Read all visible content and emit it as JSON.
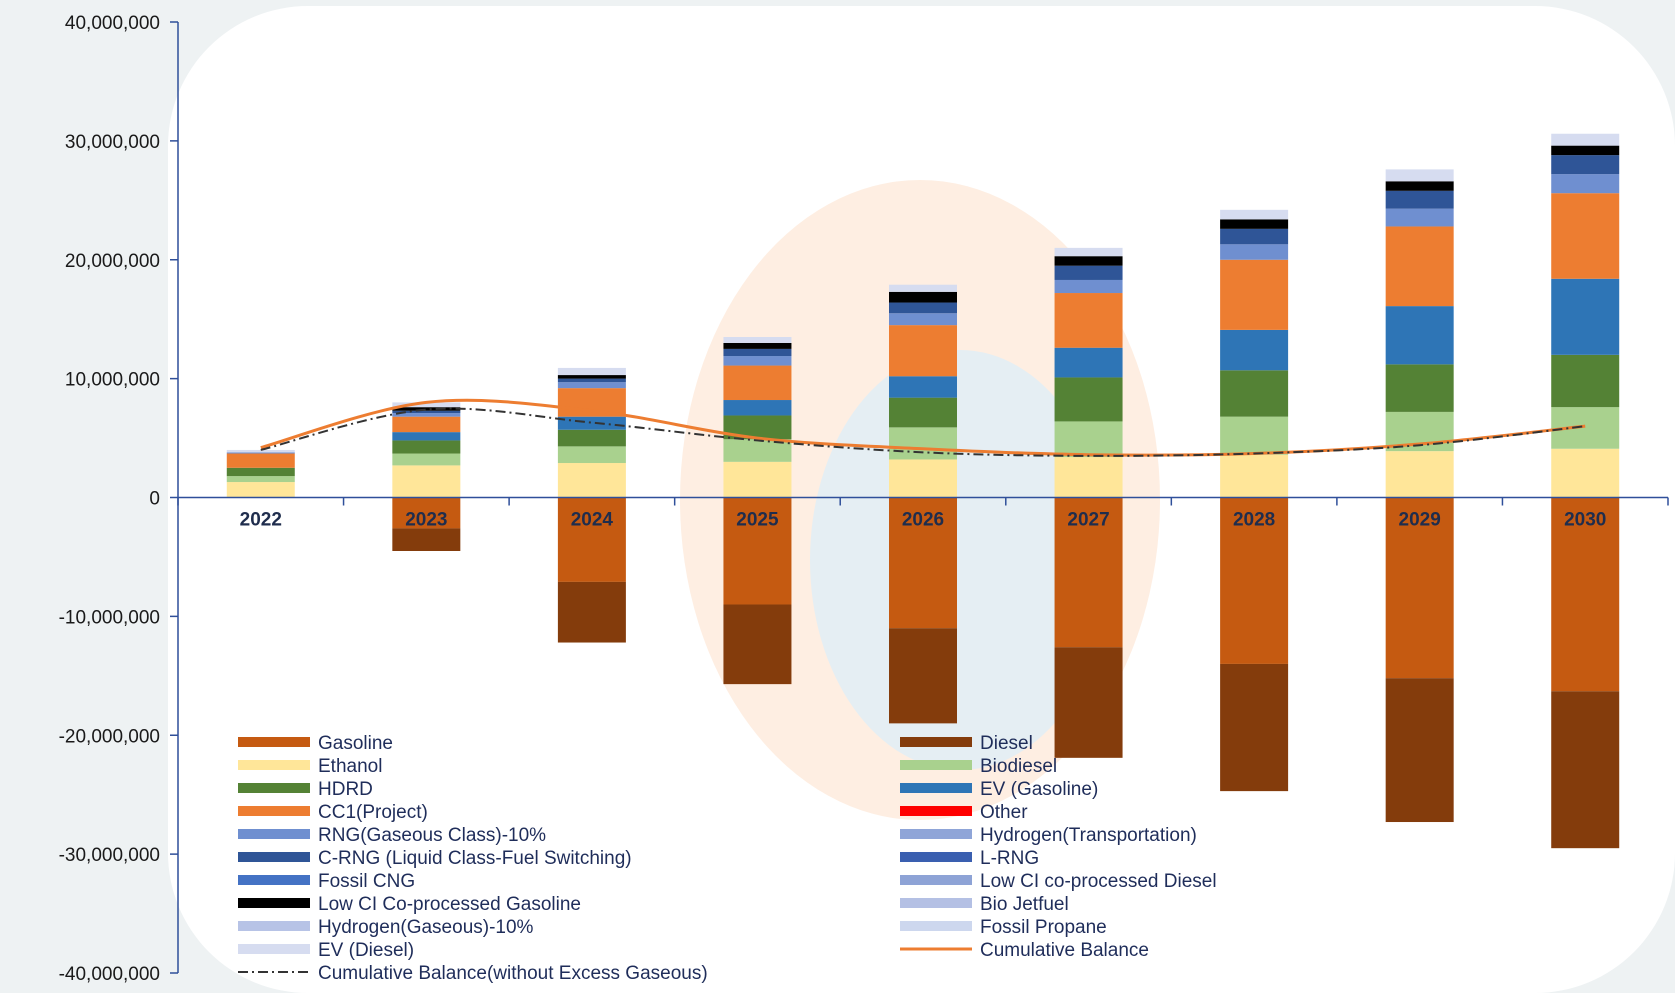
{
  "colors": {
    "axis": "#2f4f9a",
    "panel": "#ffffff",
    "page": "#eef2f3",
    "watermark_orange": "#fde7d6",
    "watermark_blue": "#dfeef8"
  },
  "chart_data": {
    "type": "bar",
    "stacked": true,
    "title": "",
    "xlabel": "",
    "ylabel": "",
    "ylim": [
      -40000000,
      40000000
    ],
    "yticks": [
      40000000,
      30000000,
      20000000,
      10000000,
      0,
      -10000000,
      -20000000,
      -30000000,
      -40000000
    ],
    "ytick_labels": [
      "40,000,000",
      "30,000,000",
      "20,000,000",
      "10,000,000",
      "0",
      "-10,000,000",
      "-20,000,000",
      "-30,000,000",
      "-40,000,000"
    ],
    "categories": [
      "2022",
      "2023",
      "2024",
      "2025",
      "2026",
      "2027",
      "2028",
      "2029",
      "2030"
    ],
    "legend_position": "bottom",
    "series": [
      {
        "name": "Gasoline",
        "color": "#c55a11",
        "values": [
          0,
          -2600000,
          -7100000,
          -9000000,
          -11000000,
          -12600000,
          -14000000,
          -15200000,
          -16300000
        ]
      },
      {
        "name": "Diesel",
        "color": "#843c0c",
        "values": [
          0,
          -1900000,
          -5100000,
          -6700000,
          -8000000,
          -9300000,
          -10700000,
          -12100000,
          -13200000
        ]
      },
      {
        "name": "Ethanol",
        "color": "#ffe699",
        "values": [
          1300000,
          2700000,
          2900000,
          3000000,
          3200000,
          3400000,
          3600000,
          3900000,
          4100000
        ]
      },
      {
        "name": "Biodiesel",
        "color": "#a9d18e",
        "values": [
          500000,
          1000000,
          1400000,
          1900000,
          2700000,
          3000000,
          3200000,
          3300000,
          3500000
        ]
      },
      {
        "name": "HDRD",
        "color": "#548235",
        "values": [
          700000,
          1100000,
          1400000,
          2000000,
          2500000,
          3700000,
          3900000,
          4000000,
          4400000
        ]
      },
      {
        "name": "EV (Gasoline)",
        "color": "#2e75b6",
        "values": [
          0,
          700000,
          1100000,
          1300000,
          1800000,
          2500000,
          3400000,
          4900000,
          6400000
        ]
      },
      {
        "name": "CC1(Project)",
        "color": "#ed7d31",
        "values": [
          1200000,
          1300000,
          2400000,
          2900000,
          4300000,
          4600000,
          5900000,
          6700000,
          7200000
        ]
      },
      {
        "name": "Other",
        "color": "#ff0000",
        "values": [
          0,
          0,
          0,
          0,
          0,
          0,
          0,
          0,
          0
        ]
      },
      {
        "name": "RNG(Gaseous Class)-10%",
        "color": "#6f8fd0",
        "values": [
          100000,
          300000,
          500000,
          800000,
          1000000,
          1100000,
          1300000,
          1500000,
          1600000
        ]
      },
      {
        "name": "Hydrogen(Transportation)",
        "color": "#8fa5d8",
        "values": [
          0,
          0,
          0,
          0,
          0,
          0,
          0,
          0,
          0
        ]
      },
      {
        "name": "C-RNG (Liquid Class-Fuel Switching)",
        "color": "#2f5597",
        "values": [
          0,
          200000,
          300000,
          600000,
          900000,
          1200000,
          1300000,
          1500000,
          1600000
        ]
      },
      {
        "name": "L-RNG",
        "color": "#3a5fb0",
        "values": [
          0,
          0,
          0,
          0,
          0,
          0,
          0,
          0,
          0
        ]
      },
      {
        "name": "Fossil CNG",
        "color": "#4472c4",
        "values": [
          0,
          0,
          0,
          0,
          0,
          0,
          0,
          0,
          0
        ]
      },
      {
        "name": "Low CI co-processed Diesel",
        "color": "#8ea3d6",
        "values": [
          0,
          0,
          0,
          0,
          0,
          0,
          0,
          0,
          0
        ]
      },
      {
        "name": "Low CI Co-processed Gasoline",
        "color": "#000000",
        "values": [
          0,
          300000,
          300000,
          500000,
          900000,
          800000,
          800000,
          800000,
          800000
        ]
      },
      {
        "name": "Bio Jetfuel",
        "color": "#b4c0e4",
        "values": [
          0,
          0,
          0,
          0,
          0,
          0,
          0,
          0,
          0
        ]
      },
      {
        "name": "Hydrogen(Gaseous)-10%",
        "color": "#b7c3e6",
        "values": [
          0,
          0,
          0,
          0,
          0,
          0,
          0,
          0,
          0
        ]
      },
      {
        "name": "Fossil Propane",
        "color": "#cdd7ee",
        "values": [
          0,
          0,
          0,
          0,
          0,
          0,
          0,
          0,
          0
        ]
      },
      {
        "name": "EV (Diesel)",
        "color": "#d6dcf0",
        "values": [
          200000,
          400000,
          600000,
          500000,
          600000,
          700000,
          800000,
          1000000,
          1000000
        ]
      }
    ],
    "lines": [
      {
        "name": "Cumulative Balance",
        "color": "#ed7d31",
        "style": "solid",
        "values": [
          4200000,
          8000000,
          7300000,
          5000000,
          4100000,
          3600000,
          3700000,
          4500000,
          6000000
        ]
      },
      {
        "name": "Cumulative Balance(without Excess Gaseous)",
        "color": "#333333",
        "style": "dash-dot",
        "values": [
          4000000,
          7400000,
          6300000,
          4800000,
          3800000,
          3500000,
          3700000,
          4400000,
          6000000
        ]
      }
    ],
    "legend": {
      "left": [
        "Gasoline",
        "Ethanol",
        "HDRD",
        "CC1(Project)",
        "RNG(Gaseous Class)-10%",
        "C-RNG (Liquid Class-Fuel Switching)",
        "Fossil CNG",
        "Low CI Co-processed Gasoline",
        "Hydrogen(Gaseous)-10%",
        "EV (Diesel)",
        "Cumulative Balance(without Excess Gaseous)"
      ],
      "right": [
        "Diesel",
        "Biodiesel",
        "EV (Gasoline)",
        "Other",
        "Hydrogen(Transportation)",
        "L-RNG",
        "Low CI co-processed Diesel",
        "Bio Jetfuel",
        "Fossil Propane",
        "Cumulative Balance"
      ]
    }
  }
}
